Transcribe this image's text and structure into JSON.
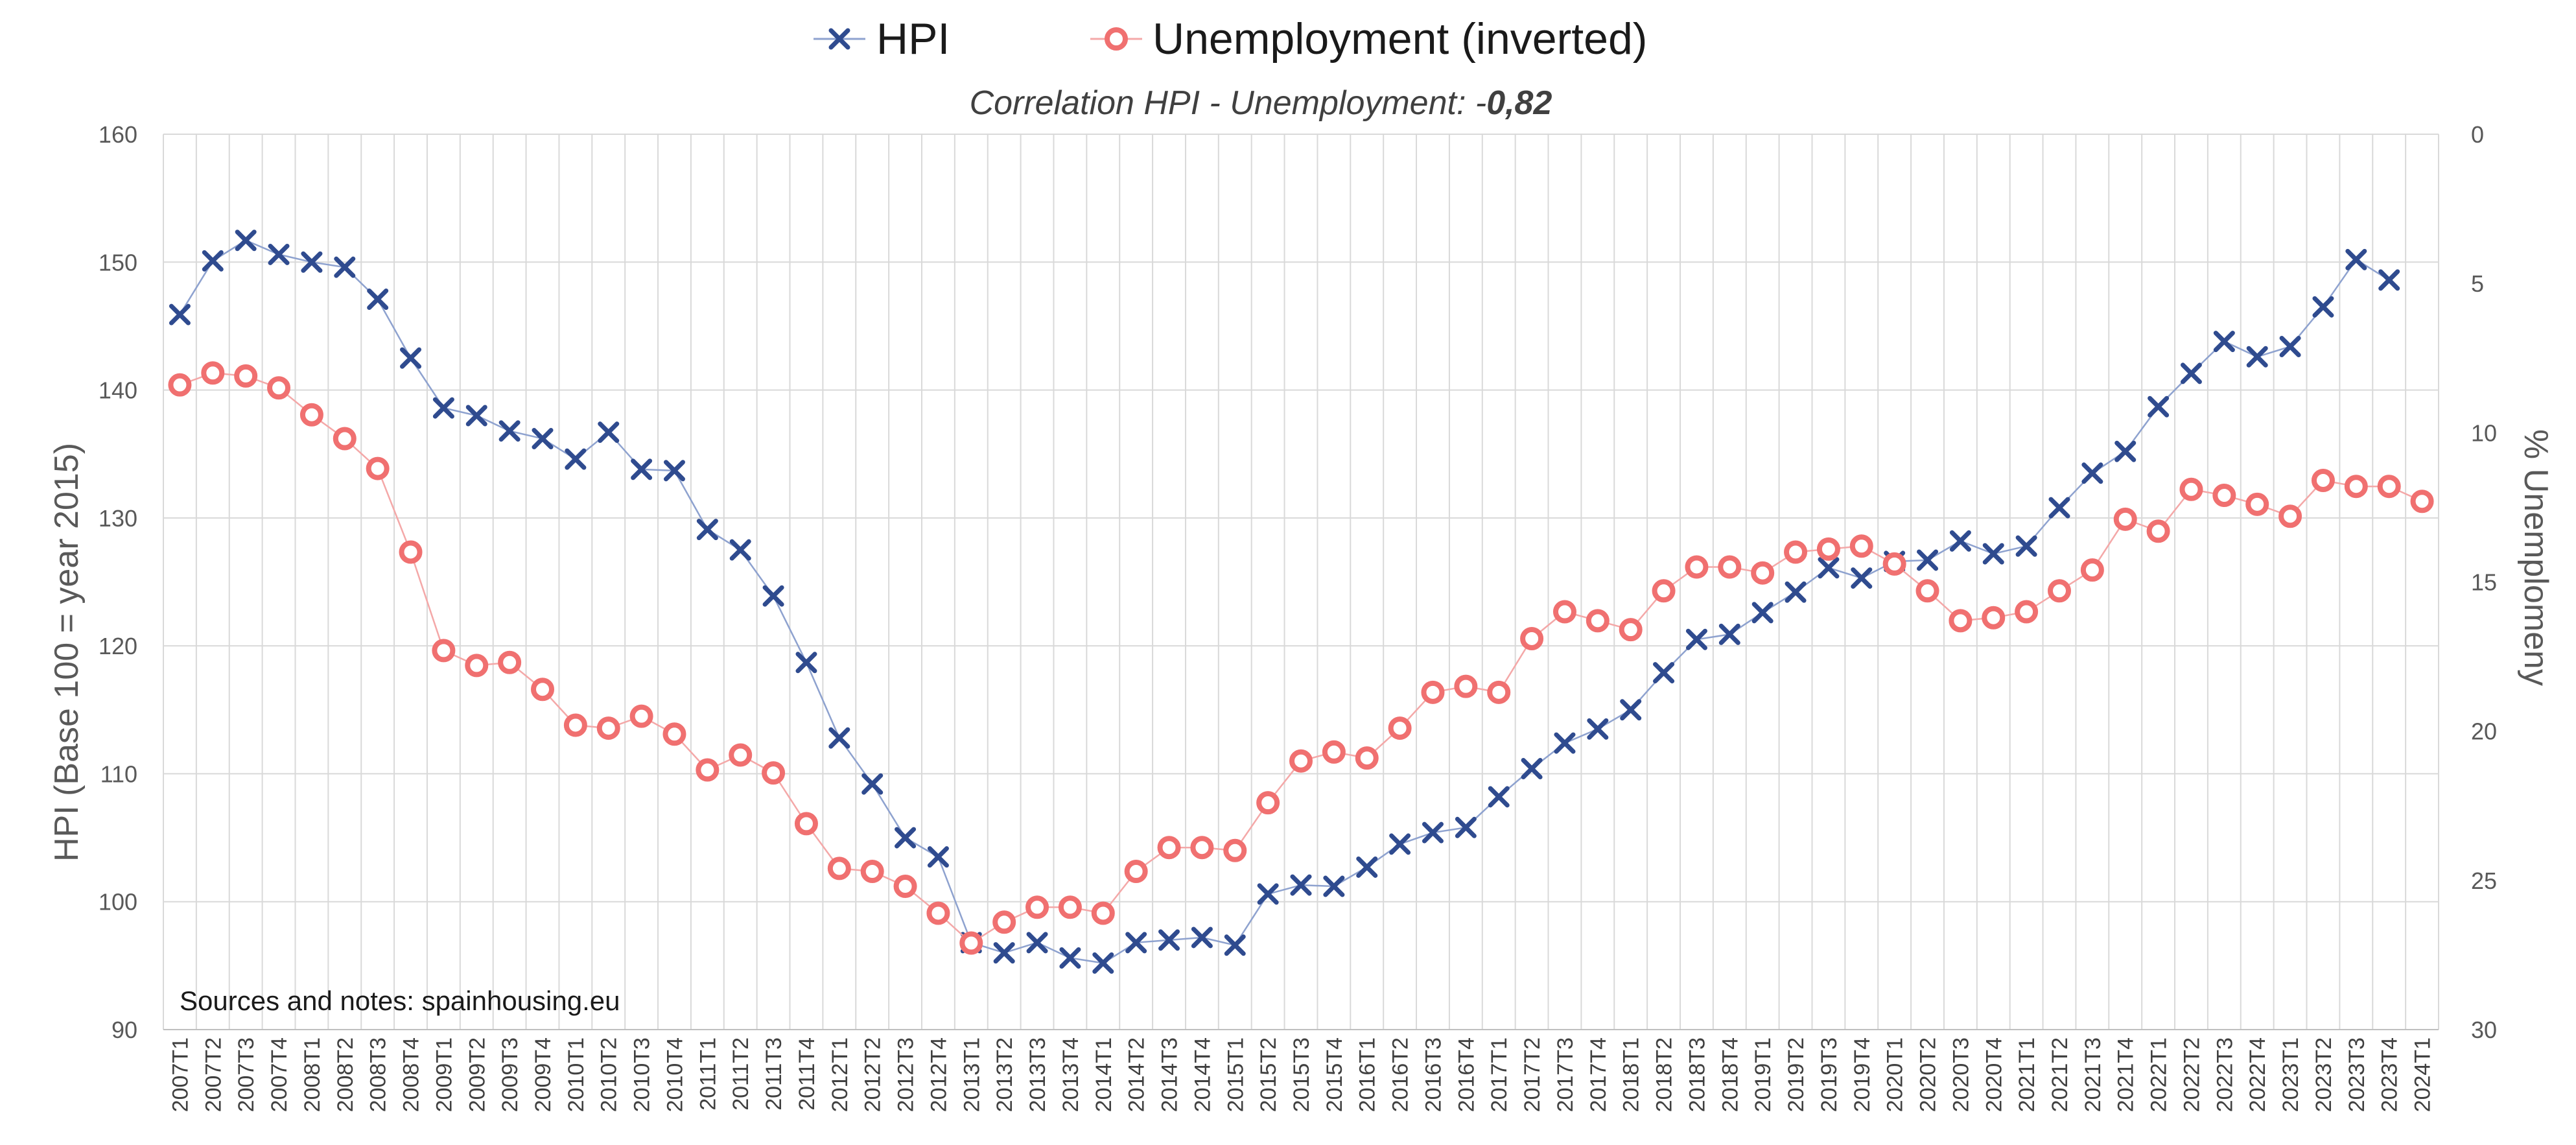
{
  "chart_data": {
    "type": "line",
    "subtitle_prefix": "Correlation HPI - Unemployment: -",
    "subtitle_value": "0,82",
    "ylabel": "HPI (Base 100 = year 2015)",
    "y2label": "% Unemplomeny",
    "source_note": "Sources and notes: spainhousing.eu",
    "ylim": [
      90,
      160
    ],
    "yticks": [
      90,
      100,
      110,
      120,
      130,
      140,
      150,
      160
    ],
    "y2lim": [
      30,
      0
    ],
    "y2ticks": [
      0,
      5,
      10,
      15,
      20,
      25,
      30
    ],
    "y2_inverted": true,
    "grid": true,
    "legend_position": "top-center",
    "categories": [
      "2007T1",
      "2007T2",
      "2007T3",
      "2007T4",
      "2008T1",
      "2008T2",
      "2008T3",
      "2008T4",
      "2009T1",
      "2009T2",
      "2009T3",
      "2009T4",
      "2010T1",
      "2010T2",
      "2010T3",
      "2010T4",
      "2011T1",
      "2011T2",
      "2011T3",
      "2011T4",
      "2012T1",
      "2012T2",
      "2012T3",
      "2012T4",
      "2013T1",
      "2013T2",
      "2013T3",
      "2013T4",
      "2014T1",
      "2014T2",
      "2014T3",
      "2014T4",
      "2015T1",
      "2015T2",
      "2015T3",
      "2015T4",
      "2016T1",
      "2016T2",
      "2016T3",
      "2016T4",
      "2017T1",
      "2017T2",
      "2017T3",
      "2017T4",
      "2018T1",
      "2018T2",
      "2018T3",
      "2018T4",
      "2019T1",
      "2019T2",
      "2019T3",
      "2019T4",
      "2020T1",
      "2020T2",
      "2020T3",
      "2020T4",
      "2021T1",
      "2021T2",
      "2021T3",
      "2021T4",
      "2022T1",
      "2022T2",
      "2022T3",
      "2022T4",
      "2023T1",
      "2023T2",
      "2023T3",
      "2023T4",
      "2024T1"
    ],
    "series": [
      {
        "name": "HPI",
        "axis": "left",
        "marker": "x",
        "color": "#2f4b8f",
        "line_color": "#8ea2cf",
        "values": [
          145.9,
          150.1,
          151.7,
          150.6,
          150.0,
          149.6,
          147.1,
          142.5,
          138.6,
          138.0,
          136.8,
          136.2,
          134.6,
          136.7,
          133.8,
          133.7,
          129.1,
          127.5,
          123.9,
          118.7,
          112.8,
          109.2,
          105.0,
          103.5,
          96.8,
          96.0,
          96.8,
          95.6,
          95.2,
          96.8,
          97.0,
          97.2,
          96.6,
          100.6,
          101.3,
          101.2,
          102.7,
          104.5,
          105.4,
          105.8,
          108.2,
          110.4,
          112.4,
          113.5,
          115.0,
          117.9,
          120.5,
          120.9,
          122.6,
          124.2,
          126.1,
          125.3,
          126.6,
          126.7,
          128.2,
          127.2,
          127.8,
          130.8,
          133.5,
          135.2,
          138.7,
          141.3,
          143.8,
          142.6,
          143.4,
          146.5,
          150.2,
          148.6,
          null
        ]
      },
      {
        "name": "Unemployment (inverted)",
        "axis": "right",
        "marker": "o",
        "color": "#f07070",
        "line_color": "#f4a8a8",
        "values": [
          8.4,
          8.0,
          8.1,
          8.5,
          9.4,
          10.2,
          11.2,
          14.0,
          17.3,
          17.8,
          17.7,
          18.6,
          19.8,
          19.9,
          19.5,
          20.1,
          21.3,
          20.8,
          21.4,
          23.1,
          24.6,
          24.7,
          25.2,
          26.1,
          27.1,
          26.4,
          25.9,
          25.9,
          26.1,
          24.7,
          23.9,
          23.9,
          24.0,
          22.4,
          21.0,
          20.7,
          20.9,
          19.9,
          18.7,
          18.5,
          18.7,
          16.9,
          16.0,
          16.3,
          16.6,
          15.3,
          14.5,
          14.5,
          14.7,
          14.0,
          13.9,
          13.8,
          14.4,
          15.3,
          16.3,
          16.2,
          16.0,
          15.3,
          14.6,
          12.9,
          13.3,
          11.9,
          12.1,
          12.4,
          12.8,
          11.6,
          11.8,
          11.8,
          12.3
        ]
      }
    ]
  }
}
